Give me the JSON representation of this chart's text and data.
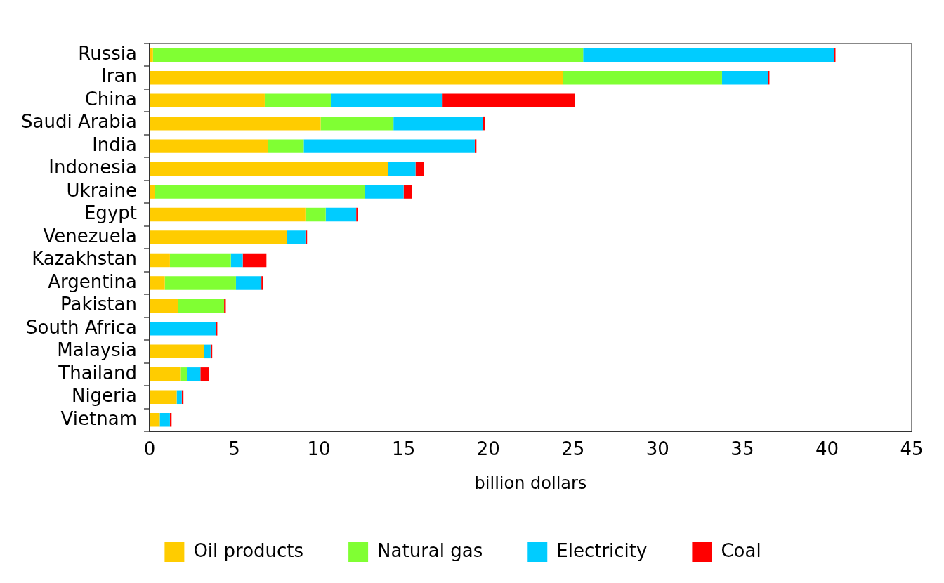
{
  "chart_data": {
    "type": "bar",
    "orientation": "horizontal",
    "stacked": true,
    "xlabel": "billion dollars",
    "categories": [
      "Russia",
      "Iran",
      "China",
      "Saudi Arabia",
      "India",
      "Indonesia",
      "Ukraine",
      "Egypt",
      "Venezuela",
      "Kazakhstan",
      "Argentina",
      "Pakistan",
      "South Africa",
      "Malaysia",
      "Thailand",
      "Nigeria",
      "Vietnam"
    ],
    "series": [
      {
        "name": "Oil products",
        "color": "#ffcc00",
        "values": [
          0.2,
          24.4,
          6.8,
          10.1,
          7.0,
          14.1,
          0.3,
          9.2,
          8.1,
          1.2,
          0.9,
          1.7,
          0,
          3.2,
          1.8,
          1.6,
          0.6
        ]
      },
      {
        "name": "Natural gas",
        "color": "#80ff33",
        "values": [
          25.4,
          9.4,
          3.9,
          4.3,
          2.1,
          0,
          12.4,
          1.2,
          0,
          3.6,
          4.2,
          2.7,
          0,
          0,
          0.4,
          0,
          0
        ]
      },
      {
        "name": "Electricity",
        "color": "#00ccff",
        "values": [
          14.8,
          2.7,
          6.6,
          5.3,
          10.1,
          1.6,
          2.3,
          1.8,
          1.1,
          0.7,
          1.5,
          0,
          3.9,
          0.4,
          0.8,
          0.3,
          0.6
        ]
      },
      {
        "name": "Coal",
        "color": "#ff0000",
        "values": [
          0.1,
          0.1,
          7.8,
          0.1,
          0.1,
          0.5,
          0.5,
          0.1,
          0.1,
          1.4,
          0.1,
          0.1,
          0.1,
          0.1,
          0.5,
          0.1,
          0.1
        ]
      }
    ],
    "xlim": [
      0,
      45
    ],
    "xticks": [
      0,
      5,
      10,
      15,
      20,
      25,
      30,
      35,
      40,
      45
    ],
    "grid": false,
    "legend": "bottom"
  }
}
